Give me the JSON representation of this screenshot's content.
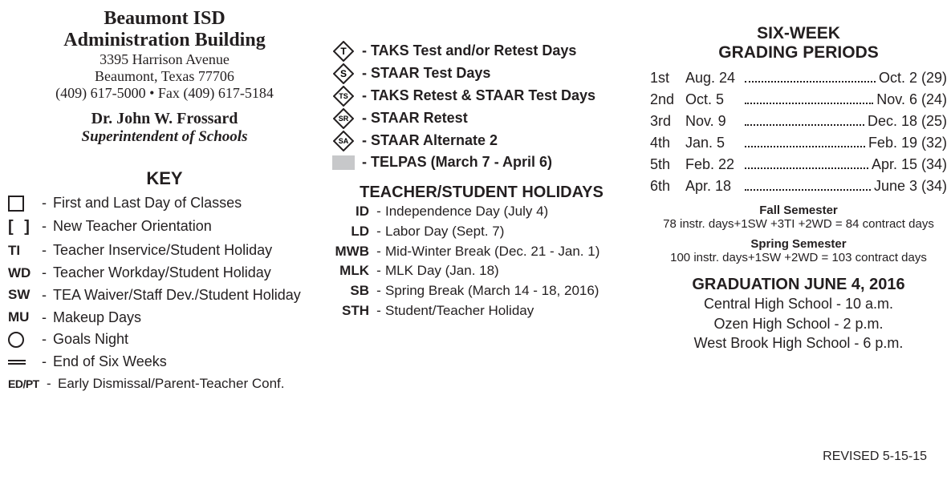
{
  "header": {
    "org": "Beaumont ISD",
    "building": "Administration Building",
    "address1": "3395 Harrison Avenue",
    "address2": "Beaumont, Texas 77706",
    "phones": "(409) 617-5000 • Fax (409) 617-5184",
    "superintendent_name": "Dr. John W. Frossard",
    "superintendent_title": "Superintendent of Schools"
  },
  "key": {
    "title": "KEY",
    "items": [
      {
        "symbol_type": "open-box",
        "code": "",
        "label": "First  and Last Day of Classes"
      },
      {
        "symbol_type": "brackets",
        "code": "[ ]",
        "label": "New Teacher Orientation"
      },
      {
        "symbol_type": "text",
        "code": "TI",
        "label": "Teacher Inservice/Student Holiday"
      },
      {
        "symbol_type": "text",
        "code": "WD",
        "label": "Teacher Workday/Student Holiday"
      },
      {
        "symbol_type": "text",
        "code": "SW",
        "label": "TEA Waiver/Staff Dev./Student Holiday"
      },
      {
        "symbol_type": "text",
        "code": "MU",
        "label": "Makeup Days"
      },
      {
        "symbol_type": "circle",
        "code": "",
        "label": "Goals Night"
      },
      {
        "symbol_type": "dbl-line",
        "code": "",
        "label": "End of Six Weeks"
      },
      {
        "symbol_type": "text-small",
        "code": "ED/PT",
        "label": "Early Dismissal/Parent-Teacher Conf."
      }
    ]
  },
  "test_legend": {
    "items": [
      {
        "diamond_text": "T",
        "label": "TAKS Test and/or Retest Days"
      },
      {
        "diamond_text": "S",
        "label": "STAAR Test Days"
      },
      {
        "diamond_text": "TS",
        "label": "TAKS Retest & STAAR Test Days"
      },
      {
        "diamond_text": "SR",
        "label": "STAAR Retest"
      },
      {
        "diamond_text": "SA",
        "label": "STAAR Alternate 2"
      }
    ],
    "telpas_label": "TELPAS (March 7 - April 6)"
  },
  "holidays": {
    "title": "TEACHER/STUDENT HOLIDAYS",
    "items": [
      {
        "code": "ID",
        "label": "Independence Day (July 4)"
      },
      {
        "code": "LD",
        "label": "Labor Day (Sept. 7)"
      },
      {
        "code": "MWB",
        "label": "Mid-Winter Break (Dec. 21 - Jan. 1)"
      },
      {
        "code": "MLK",
        "label": "MLK Day (Jan. 18)"
      },
      {
        "code": "SB",
        "label": "Spring Break (March 14 - 18, 2016)"
      },
      {
        "code": "STH",
        "label": "Student/Teacher Holiday"
      }
    ]
  },
  "grading_periods": {
    "title_line1": "SIX-WEEK",
    "title_line2": "GRADING PERIODS",
    "rows": [
      {
        "ord": "1st",
        "start": "Aug. 24",
        "end": "Oct. 2 (29)"
      },
      {
        "ord": "2nd",
        "start": "Oct. 5",
        "end": "Nov. 6 (24)"
      },
      {
        "ord": "3rd",
        "start": "Nov. 9",
        "end": "Dec. 18 (25)"
      },
      {
        "ord": "4th",
        "start": "Jan. 5",
        "end": "Feb. 19 (32)"
      },
      {
        "ord": "5th",
        "start": "Feb. 22",
        "end": "Apr. 15 (34)"
      },
      {
        "ord": "6th",
        "start": "Apr. 18",
        "end": "June 3 (34)"
      }
    ],
    "fall_title": "Fall Semester",
    "fall_detail": "78 instr. days+1SW +3TI +2WD = 84 contract days",
    "spring_title": "Spring Semester",
    "spring_detail": "100 instr. days+1SW +2WD = 103 contract days"
  },
  "graduation": {
    "title": "GRADUATION  JUNE 4, 2016",
    "lines": [
      "Central High School - 10 a.m.",
      "Ozen High School - 2 p.m.",
      "West Brook High School - 6 p.m."
    ]
  },
  "revised": "REVISED 5-15-15",
  "colors": {
    "text": "#231f20",
    "background": "#ffffff",
    "telpas_fill": "#c7c8ca"
  }
}
